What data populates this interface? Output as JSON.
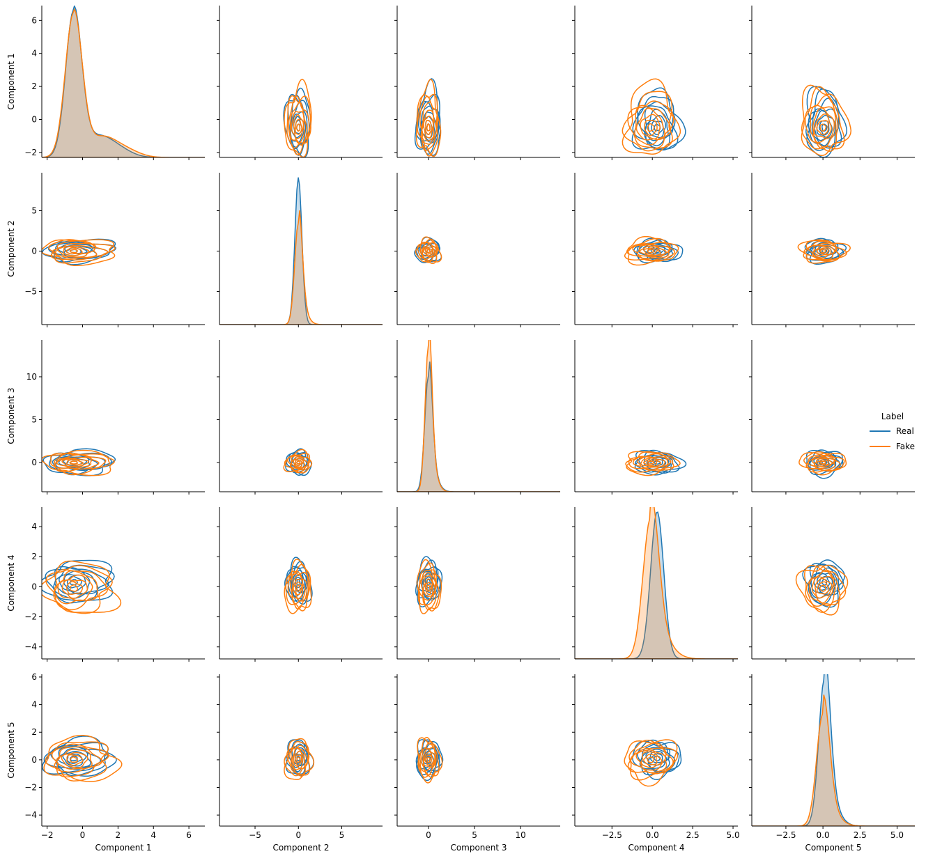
{
  "chart_data": {
    "type": "pairplot",
    "variables": [
      "Component 1",
      "Component 2",
      "Component 3",
      "Component 4",
      "Component 5"
    ],
    "diag_kind": "kde",
    "offdiag_kind": "kde",
    "grid": false,
    "ranges": [
      [
        -2.3,
        6.9
      ],
      [
        -9.1,
        9.7
      ],
      [
        -3.4,
        14.3
      ],
      [
        -4.8,
        5.3
      ],
      [
        -4.8,
        6.2
      ]
    ],
    "ticks": [
      [
        -2,
        0,
        2,
        4,
        6
      ],
      [
        -5,
        0,
        5
      ],
      [
        0,
        5,
        10
      ],
      [
        -4,
        -2,
        0,
        2,
        4
      ],
      [
        -4,
        -2,
        0,
        2,
        4,
        6
      ]
    ],
    "x_ticks": [
      [
        -2,
        0,
        2,
        4,
        6
      ],
      [
        -5,
        0,
        5
      ],
      [
        0,
        5,
        10
      ],
      [
        -2.5,
        0.0,
        2.5,
        5.0
      ],
      [
        -2.5,
        0.0,
        2.5,
        5.0
      ]
    ],
    "x_tick_labels": [
      [
        "−2",
        "0",
        "2",
        "4",
        "6"
      ],
      [
        "−5",
        "0",
        "5"
      ],
      [
        "0",
        "5",
        "10"
      ],
      [
        "−2.5",
        "0.0",
        "2.5",
        "5.0"
      ],
      [
        "−2.5",
        "0.0",
        "2.5",
        "5.0"
      ]
    ],
    "y_tick_labels": [
      [
        "−2",
        "0",
        "2",
        "4",
        "6"
      ],
      [
        "−5",
        "0",
        "5"
      ],
      [
        "0",
        "5",
        "10"
      ],
      [
        "−4",
        "−2",
        "0",
        "2",
        "4"
      ],
      [
        "−4",
        "−2",
        "0",
        "2",
        "4",
        "6"
      ]
    ],
    "diag_density_max": [
      6.4,
      8.7,
      13.3,
      4.9,
      5.5
    ],
    "series": [
      {
        "name": "Real",
        "color": "#1f77b4",
        "center": [
          -0.5,
          0.0,
          0.0,
          0.3,
          0.1
        ],
        "spread": [
          1.0,
          0.9,
          0.9,
          0.9,
          0.85
        ],
        "tail": [
          1.4,
          0.1,
          0.2,
          0.1,
          0.2
        ],
        "diag_peak": [
          6.4,
          8.7,
          10.5,
          4.9,
          5.5
        ],
        "diag_fill_opacity": 0.25
      },
      {
        "name": "Fake",
        "color": "#ff7f0e",
        "center": [
          -0.5,
          0.0,
          0.0,
          -0.1,
          0.0
        ],
        "spread": [
          1.05,
          0.95,
          0.8,
          1.05,
          0.95
        ],
        "tail": [
          1.6,
          0.15,
          0.2,
          0.3,
          0.15
        ],
        "diag_peak": [
          6.3,
          6.0,
          13.3,
          4.7,
          4.2
        ],
        "diag_fill_opacity": 0.25
      }
    ],
    "legend": {
      "title": "Label",
      "position": "right",
      "entries": [
        "Real",
        "Fake"
      ]
    }
  }
}
